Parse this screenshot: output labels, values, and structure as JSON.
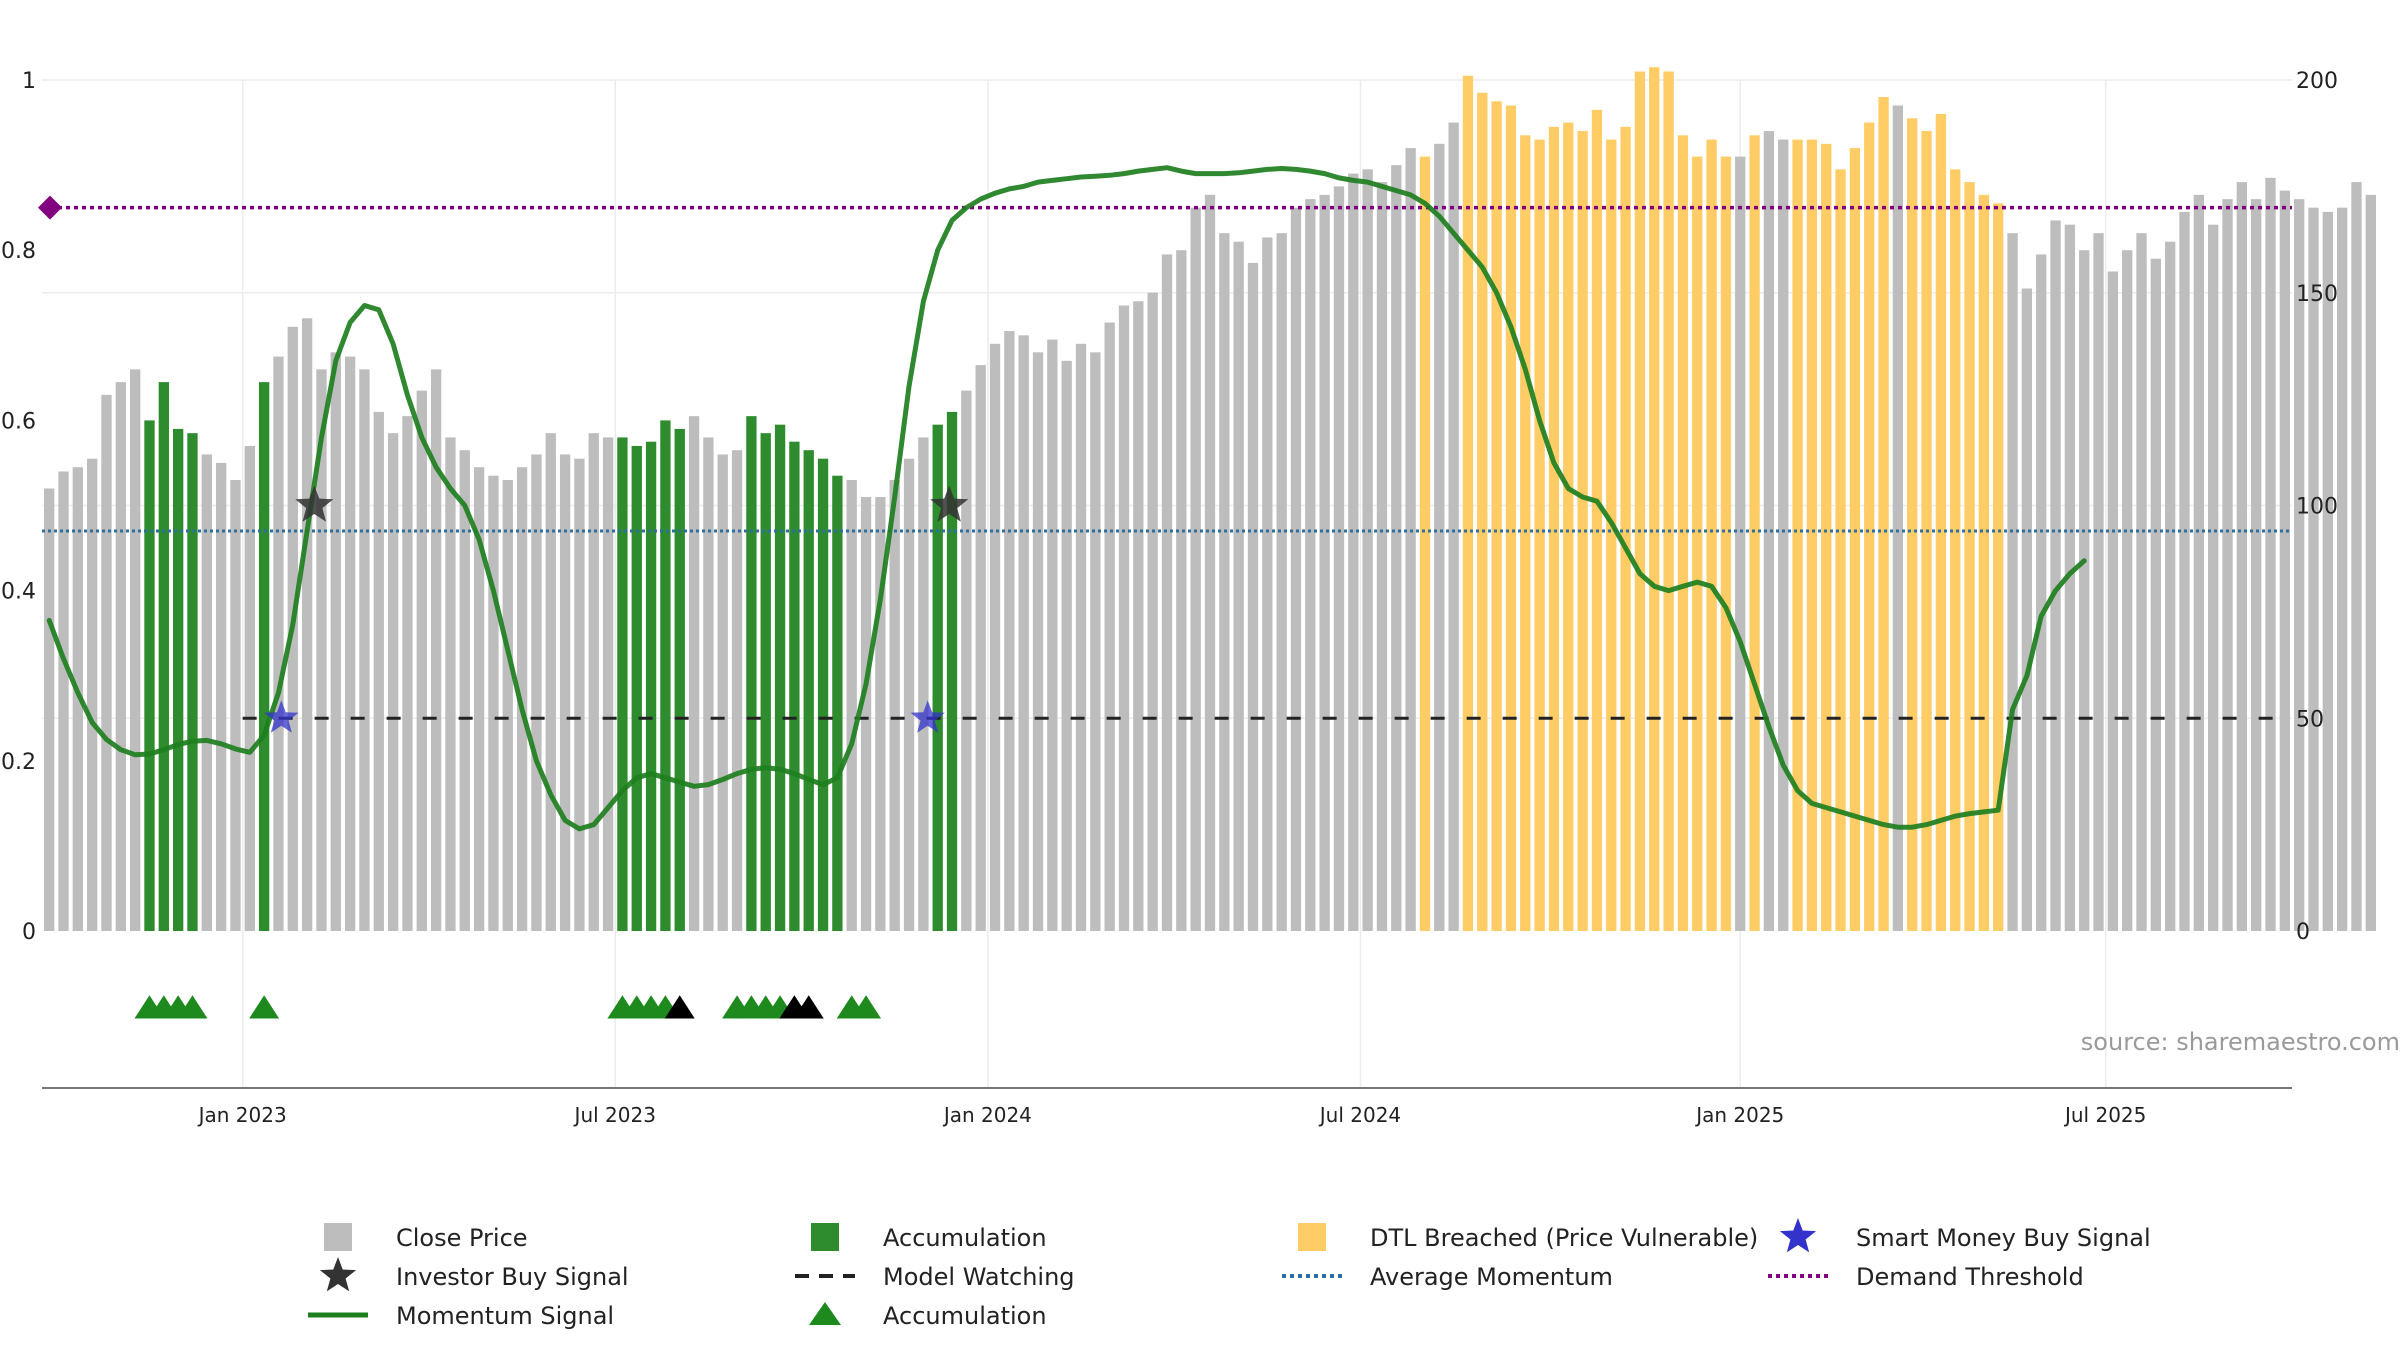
{
  "chart_data": {
    "type": "bar",
    "source_label": "source: sharemaestro.com",
    "colors": {
      "close_price": "#bdbdbd",
      "accumulation": "#2e8b2e",
      "dtl_breached": "#ffcc66",
      "momentum": "#1e7f1e",
      "demand_threshold": "#800080",
      "average_momentum": "#2f6f9f",
      "model_watching": "#222222",
      "investor_star": "#333333",
      "smart_money_star": "#3333cc",
      "accumulation_marker": "#1e8a1e",
      "watch_marker": "#000000"
    },
    "left_axis": {
      "ylim": [
        0,
        1
      ],
      "ticks": [
        "0",
        "0.2",
        "0.4",
        "0.6",
        "0.8",
        "1"
      ]
    },
    "right_axis": {
      "ylim": [
        0,
        200
      ],
      "ticks": [
        "0",
        "50",
        "100",
        "150",
        "200"
      ]
    },
    "x_ticks": [
      {
        "label": "Jan 2023",
        "week": 14
      },
      {
        "label": "Jul 2023",
        "week": 40
      },
      {
        "label": "Jan 2024",
        "week": 66
      },
      {
        "label": "Jul 2024",
        "week": 92
      },
      {
        "label": "Jan 2025",
        "week": 118.5
      },
      {
        "label": "Jul 2025",
        "week": 144
      }
    ],
    "x_range": [
      0,
      157
    ],
    "prices": [
      104,
      108,
      109,
      111,
      126,
      129,
      132,
      120,
      129,
      118,
      117,
      112,
      110,
      106,
      114,
      129,
      135,
      142,
      144,
      132,
      136,
      135,
      132,
      122,
      117,
      121,
      127,
      132,
      116,
      113,
      109,
      107,
      106,
      109,
      112,
      117,
      112,
      111,
      117,
      116,
      116,
      114,
      115,
      120,
      118,
      121,
      116,
      112,
      113,
      121,
      117,
      119,
      115,
      113,
      111,
      107,
      106,
      102,
      102,
      106,
      111,
      116,
      119,
      122,
      127,
      133,
      138,
      141,
      140,
      136,
      139,
      134,
      138,
      136,
      143,
      147,
      148,
      150,
      159,
      160,
      170,
      173,
      164,
      162,
      157,
      163,
      164,
      170,
      172,
      173,
      175,
      178,
      179,
      176,
      180,
      184,
      182,
      185,
      190,
      201,
      197,
      195,
      194,
      187,
      186,
      189,
      190,
      188,
      193,
      186,
      189,
      202,
      203,
      202,
      187,
      182,
      186,
      182,
      182,
      187,
      188,
      186,
      186,
      186,
      185,
      179,
      184,
      190,
      196,
      194,
      191,
      188,
      192,
      179,
      176,
      173,
      171,
      164,
      151,
      159,
      167,
      166,
      160,
      164,
      155,
      160,
      164,
      158,
      162,
      169,
      173,
      166,
      172,
      176,
      172,
      177,
      174,
      172,
      170,
      169,
      170,
      176,
      173
    ],
    "bar_colors": [
      "g",
      "g",
      "g",
      "g",
      "g",
      "g",
      "g",
      "a",
      "a",
      "a",
      "a",
      "g",
      "g",
      "g",
      "g",
      "a",
      "g",
      "g",
      "g",
      "g",
      "g",
      "g",
      "g",
      "g",
      "g",
      "g",
      "g",
      "g",
      "g",
      "g",
      "g",
      "g",
      "g",
      "g",
      "g",
      "g",
      "g",
      "g",
      "g",
      "g",
      "a",
      "a",
      "a",
      "a",
      "a",
      "g",
      "g",
      "g",
      "g",
      "a",
      "a",
      "a",
      "a",
      "a",
      "a",
      "a",
      "g",
      "g",
      "g",
      "g",
      "g",
      "g",
      "a",
      "a",
      "g",
      "g",
      "g",
      "g",
      "g",
      "g",
      "g",
      "g",
      "g",
      "g",
      "g",
      "g",
      "g",
      "g",
      "g",
      "g",
      "g",
      "g",
      "g",
      "g",
      "g",
      "g",
      "g",
      "g",
      "g",
      "g",
      "g",
      "g",
      "g",
      "g",
      "g",
      "g",
      "d",
      "g",
      "g",
      "d",
      "d",
      "d",
      "d",
      "d",
      "d",
      "d",
      "d",
      "d",
      "d",
      "d",
      "d",
      "d",
      "d",
      "d",
      "d",
      "d",
      "d",
      "d",
      "g",
      "d",
      "g",
      "g",
      "d",
      "d",
      "d",
      "d",
      "d",
      "d",
      "d",
      "g",
      "d",
      "d",
      "d",
      "d",
      "d",
      "d",
      "d",
      "g",
      "g",
      "g",
      "g",
      "g",
      "g",
      "g",
      "g",
      "g",
      "g",
      "g",
      "g",
      "g",
      "g",
      "g",
      "g",
      "g",
      "g",
      "g",
      "g",
      "g",
      "g",
      "g",
      "g",
      "g",
      "g",
      "g"
    ],
    "momentum": [
      [
        0,
        0.365
      ],
      [
        1,
        0.32
      ],
      [
        2,
        0.28
      ],
      [
        3,
        0.245
      ],
      [
        4,
        0.225
      ],
      [
        5,
        0.213
      ],
      [
        6,
        0.207
      ],
      [
        7,
        0.208
      ],
      [
        8,
        0.213
      ],
      [
        9,
        0.219
      ],
      [
        10,
        0.223
      ],
      [
        11,
        0.224
      ],
      [
        12,
        0.22
      ],
      [
        13,
        0.214
      ],
      [
        14,
        0.21
      ],
      [
        15,
        0.23
      ],
      [
        16,
        0.28
      ],
      [
        17,
        0.36
      ],
      [
        18,
        0.47
      ],
      [
        19,
        0.58
      ],
      [
        20,
        0.67
      ],
      [
        21,
        0.715
      ],
      [
        22,
        0.735
      ],
      [
        23,
        0.73
      ],
      [
        24,
        0.69
      ],
      [
        25,
        0.63
      ],
      [
        26,
        0.58
      ],
      [
        27,
        0.545
      ],
      [
        28,
        0.52
      ],
      [
        29,
        0.5
      ],
      [
        30,
        0.46
      ],
      [
        31,
        0.4
      ],
      [
        32,
        0.33
      ],
      [
        33,
        0.26
      ],
      [
        34,
        0.2
      ],
      [
        35,
        0.16
      ],
      [
        36,
        0.13
      ],
      [
        37,
        0.12
      ],
      [
        38,
        0.125
      ],
      [
        39,
        0.145
      ],
      [
        40,
        0.165
      ],
      [
        41,
        0.18
      ],
      [
        42,
        0.185
      ],
      [
        43,
        0.18
      ],
      [
        44,
        0.175
      ],
      [
        45,
        0.17
      ],
      [
        46,
        0.172
      ],
      [
        47,
        0.178
      ],
      [
        48,
        0.185
      ],
      [
        49,
        0.19
      ],
      [
        50,
        0.192
      ],
      [
        51,
        0.19
      ],
      [
        52,
        0.185
      ],
      [
        53,
        0.178
      ],
      [
        54,
        0.172
      ],
      [
        55,
        0.18
      ],
      [
        56,
        0.22
      ],
      [
        57,
        0.29
      ],
      [
        58,
        0.39
      ],
      [
        59,
        0.51
      ],
      [
        60,
        0.64
      ],
      [
        61,
        0.74
      ],
      [
        62,
        0.8
      ],
      [
        63,
        0.835
      ],
      [
        64,
        0.85
      ],
      [
        65,
        0.86
      ],
      [
        66,
        0.867
      ],
      [
        67,
        0.872
      ],
      [
        68,
        0.875
      ],
      [
        69,
        0.88
      ],
      [
        70,
        0.882
      ],
      [
        71,
        0.884
      ],
      [
        72,
        0.886
      ],
      [
        73,
        0.887
      ],
      [
        74,
        0.888
      ],
      [
        75,
        0.89
      ],
      [
        76,
        0.893
      ],
      [
        77,
        0.895
      ],
      [
        78,
        0.897
      ],
      [
        79,
        0.893
      ],
      [
        80,
        0.89
      ],
      [
        81,
        0.89
      ],
      [
        82,
        0.89
      ],
      [
        83,
        0.891
      ],
      [
        84,
        0.893
      ],
      [
        85,
        0.895
      ],
      [
        86,
        0.896
      ],
      [
        87,
        0.895
      ],
      [
        88,
        0.893
      ],
      [
        89,
        0.89
      ],
      [
        90,
        0.885
      ],
      [
        91,
        0.882
      ],
      [
        92,
        0.88
      ],
      [
        93,
        0.875
      ],
      [
        94,
        0.87
      ],
      [
        95,
        0.865
      ],
      [
        96,
        0.855
      ],
      [
        97,
        0.84
      ],
      [
        98,
        0.82
      ],
      [
        99,
        0.8
      ],
      [
        100,
        0.78
      ],
      [
        101,
        0.75
      ],
      [
        102,
        0.71
      ],
      [
        103,
        0.66
      ],
      [
        104,
        0.6
      ],
      [
        105,
        0.55
      ],
      [
        106,
        0.52
      ],
      [
        107,
        0.51
      ],
      [
        108,
        0.505
      ],
      [
        109,
        0.48
      ],
      [
        110,
        0.45
      ],
      [
        111,
        0.42
      ],
      [
        112,
        0.405
      ],
      [
        113,
        0.4
      ],
      [
        114,
        0.405
      ],
      [
        115,
        0.41
      ],
      [
        116,
        0.405
      ],
      [
        117,
        0.38
      ],
      [
        118,
        0.34
      ],
      [
        119,
        0.29
      ],
      [
        120,
        0.24
      ],
      [
        121,
        0.195
      ],
      [
        122,
        0.165
      ],
      [
        123,
        0.15
      ],
      [
        124,
        0.145
      ],
      [
        125,
        0.14
      ],
      [
        126,
        0.135
      ],
      [
        127,
        0.13
      ],
      [
        128,
        0.125
      ],
      [
        129,
        0.122
      ],
      [
        130,
        0.122
      ],
      [
        131,
        0.125
      ],
      [
        132,
        0.13
      ],
      [
        133,
        0.135
      ],
      [
        134,
        0.138
      ],
      [
        135,
        0.14
      ],
      [
        136,
        0.142
      ],
      [
        137,
        0.26
      ],
      [
        138,
        0.3
      ],
      [
        139,
        0.37
      ],
      [
        140,
        0.4
      ],
      [
        141,
        0.42
      ],
      [
        142,
        0.435
      ]
    ],
    "average_momentum": 0.47,
    "model_watching": 0.25,
    "demand_threshold": 0.85,
    "investor_buy_signals": [
      {
        "x": 19.0,
        "y": 0.5
      },
      {
        "x": 63.3,
        "y": 0.5
      }
    ],
    "smart_money_signals": [
      {
        "x": 16.7,
        "y": 0.25
      },
      {
        "x": 61.8,
        "y": 0.25
      }
    ],
    "accumulation_markers": [
      7,
      8,
      9,
      10,
      15,
      40,
      41,
      42,
      43,
      48,
      49,
      50,
      51,
      56,
      57
    ],
    "watch_markers": [
      44,
      52,
      53
    ],
    "legend": [
      {
        "label": "Close Price",
        "symbol": "square",
        "color_key": "close_price"
      },
      {
        "label": "Accumulation",
        "symbol": "square",
        "color_key": "accumulation"
      },
      {
        "label": "DTL Breached (Price Vulnerable)",
        "symbol": "square",
        "color_key": "dtl_breached"
      },
      {
        "label": "Smart Money Buy Signal",
        "symbol": "star",
        "color_key": "smart_money_star"
      },
      {
        "label": "Investor Buy Signal",
        "symbol": "star",
        "color_key": "investor_star"
      },
      {
        "label": "Model Watching",
        "symbol": "dash",
        "color_key": "model_watching"
      },
      {
        "label": "Average Momentum",
        "symbol": "dot",
        "color_key": "average_momentum"
      },
      {
        "label": "Demand Threshold",
        "symbol": "dot",
        "color_key": "demand_threshold"
      },
      {
        "label": "Momentum Signal",
        "symbol": "line",
        "color_key": "momentum"
      },
      {
        "label": "Accumulation",
        "symbol": "triangle",
        "color_key": "accumulation_marker"
      }
    ]
  }
}
